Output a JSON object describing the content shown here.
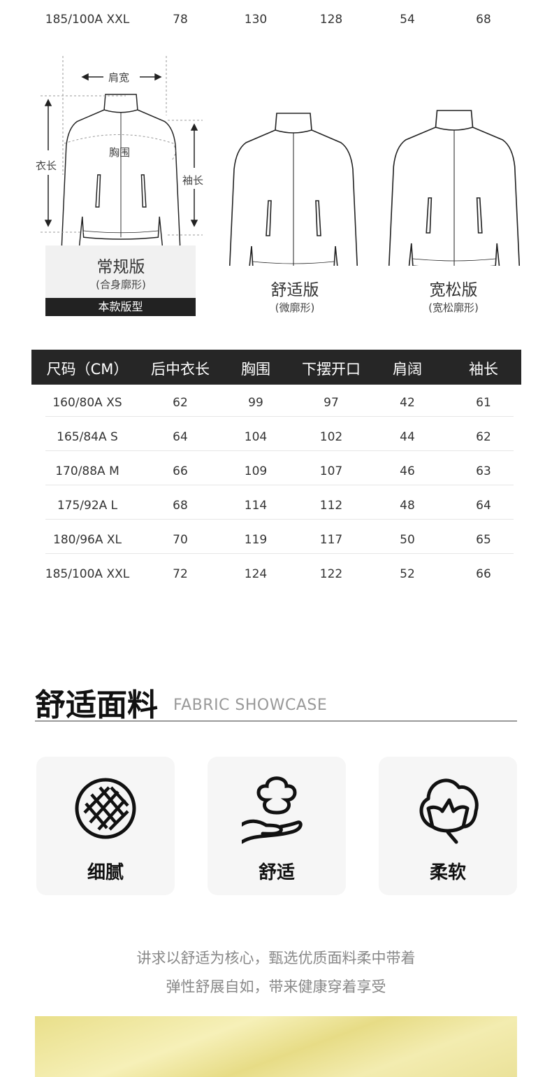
{
  "prev_table_last_row": [
    "185/100A XXL",
    "78",
    "130",
    "128",
    "54",
    "68"
  ],
  "fit_diagram": {
    "labels": {
      "shoulder": "肩宽",
      "chest": "胸围",
      "length": "衣长",
      "sleeve": "袖长"
    },
    "fits": [
      {
        "title": "常规版",
        "subtitle": "(合身廓形)",
        "badge": "本款版型"
      },
      {
        "title": "舒适版",
        "subtitle": "(微廓形)"
      },
      {
        "title": "宽松版",
        "subtitle": "(宽松廓形)"
      }
    ]
  },
  "size_table": {
    "headers": [
      "尺码（CM）",
      "后中衣长",
      "胸围",
      "下摆开口",
      "肩阔",
      "袖长"
    ],
    "rows": [
      [
        "160/80A XS",
        "62",
        "99",
        "97",
        "42",
        "61"
      ],
      [
        "165/84A S",
        "64",
        "104",
        "102",
        "44",
        "62"
      ],
      [
        "170/88A M",
        "66",
        "109",
        "107",
        "46",
        "63"
      ],
      [
        "175/92A L",
        "68",
        "114",
        "112",
        "48",
        "64"
      ],
      [
        "180/96A XL",
        "70",
        "119",
        "117",
        "50",
        "65"
      ],
      [
        "185/100A XXL",
        "72",
        "124",
        "122",
        "52",
        "66"
      ]
    ]
  },
  "fabric": {
    "title": "舒适面料",
    "subtitle": "FABRIC SHOWCASE",
    "features": [
      {
        "label": "细腻",
        "icon": "mesh-circle-icon"
      },
      {
        "label": "舒适",
        "icon": "cotton-hand-icon"
      },
      {
        "label": "柔软",
        "icon": "cotton-flower-icon"
      }
    ],
    "description_lines": [
      "讲求以舒适为核心，甄选优质面料柔中带着",
      "弹性舒展自如，带来健康穿着享受"
    ],
    "swatch_color": "#efe6a0"
  }
}
